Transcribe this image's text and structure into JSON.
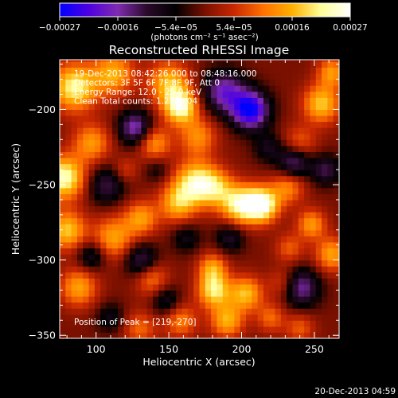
{
  "chart_data": {
    "type": "heatmap",
    "title": "Reconstructed RHESSI Image",
    "xlabel": "Heliocentric X (arcsec)",
    "ylabel": "Heliocentric Y (arcsec)",
    "xlim": [
      75,
      267
    ],
    "ylim": [
      -352,
      -167
    ],
    "x_ticks": [
      100,
      150,
      200,
      250
    ],
    "x_tick_labels": [
      "100",
      "150",
      "200",
      "250"
    ],
    "y_ticks": [
      -200,
      -250,
      -300,
      -350
    ],
    "y_tick_labels": [
      "−200",
      "−250",
      "−300",
      "−350"
    ],
    "colorbar": {
      "range": [
        -0.00027,
        0.00027
      ],
      "tick_labels": [
        "−0.00027",
        "−0.00016",
        "−5.4e−05",
        "5.4e−05",
        "0.00016",
        "0.00027"
      ],
      "unit_label": "(photons cm⁻² s⁻¹ asec⁻²)",
      "colors": [
        "#0000ff",
        "#4f00e0",
        "#7f2bb0",
        "#2a0a2a",
        "#000000",
        "#7a1000",
        "#c82800",
        "#ff7000",
        "#ffb000",
        "#ffff9a",
        "#ffffff"
      ]
    },
    "annotations": [
      "19-Dec-2013 08:42:26.000 to 08:48:16.000",
      "Detectors: 3F 5F 6F 7F 8F 9F, Att 0",
      "Energy Range: 12.0 - 25.0 keV",
      "Clean     Total counts: 1.27E+04"
    ],
    "peak_label": "Position of Peak = [219,-270]",
    "peak": [
      219,
      -270
    ],
    "blobs": [
      {
        "x": 85,
        "y": -185,
        "a": 0.00022,
        "s": 11
      },
      {
        "x": 112,
        "y": -176,
        "a": 0.00016,
        "s": 10
      },
      {
        "x": 97,
        "y": -222,
        "a": 0.00014,
        "s": 9
      },
      {
        "x": 78,
        "y": -245,
        "a": 0.00024,
        "s": 10
      },
      {
        "x": 80,
        "y": -280,
        "a": 0.00018,
        "s": 9
      },
      {
        "x": 112,
        "y": -285,
        "a": 0.00015,
        "s": 10
      },
      {
        "x": 131,
        "y": -272,
        "a": 0.00014,
        "s": 8
      },
      {
        "x": 88,
        "y": -318,
        "a": 0.00015,
        "s": 9
      },
      {
        "x": 138,
        "y": -312,
        "a": 0.00012,
        "s": 8
      },
      {
        "x": 150,
        "y": -182,
        "a": 0.00017,
        "s": 10
      },
      {
        "x": 158,
        "y": -198,
        "a": 0.00024,
        "s": 8
      },
      {
        "x": 140,
        "y": -222,
        "a": 0.00014,
        "s": 8
      },
      {
        "x": 170,
        "y": -218,
        "a": 0.00013,
        "s": 9
      },
      {
        "x": 168,
        "y": -248,
        "a": 0.0002,
        "s": 10
      },
      {
        "x": 156,
        "y": -262,
        "a": 0.00016,
        "s": 9
      },
      {
        "x": 182,
        "y": -252,
        "a": 0.00015,
        "s": 9
      },
      {
        "x": 199,
        "y": -263,
        "a": 0.00022,
        "s": 9
      },
      {
        "x": 214,
        "y": -263,
        "a": 0.00027,
        "s": 8
      },
      {
        "x": 232,
        "y": -251,
        "a": 0.00013,
        "s": 8
      },
      {
        "x": 248,
        "y": -276,
        "a": 0.00014,
        "s": 7
      },
      {
        "x": 262,
        "y": -296,
        "a": 0.00015,
        "s": 8
      },
      {
        "x": 233,
        "y": -292,
        "a": 9e-05,
        "s": 7
      },
      {
        "x": 255,
        "y": -196,
        "a": 0.00018,
        "s": 9
      },
      {
        "x": 262,
        "y": -175,
        "a": 0.00014,
        "s": 7
      },
      {
        "x": 240,
        "y": -222,
        "a": 0.0001,
        "s": 8
      },
      {
        "x": 181,
        "y": -320,
        "a": 0.0002,
        "s": 8
      },
      {
        "x": 203,
        "y": -322,
        "a": 0.00017,
        "s": 8
      },
      {
        "x": 190,
        "y": -340,
        "a": 0.00016,
        "s": 8
      },
      {
        "x": 180,
        "y": -305,
        "a": 0.00014,
        "s": 7
      },
      {
        "x": 158,
        "y": -340,
        "a": 0.00012,
        "s": 8
      },
      {
        "x": 220,
        "y": -338,
        "a": 0.0001,
        "s": 7
      },
      {
        "x": 130,
        "y": -345,
        "a": 0.0001,
        "s": 8
      },
      {
        "x": 240,
        "y": -345,
        "a": 9e-05,
        "s": 7
      },
      {
        "x": 228,
        "y": -315,
        "a": 8e-05,
        "s": 7
      },
      {
        "x": 120,
        "y": -240,
        "a": 7e-05,
        "s": 6
      },
      {
        "x": 206,
        "y": -200,
        "a": -0.00027,
        "s": 9
      },
      {
        "x": 188,
        "y": -188,
        "a": -0.00018,
        "s": 10
      },
      {
        "x": 127,
        "y": -212,
        "a": -0.00018,
        "s": 8
      },
      {
        "x": 107,
        "y": -250,
        "a": -0.00012,
        "s": 9
      },
      {
        "x": 236,
        "y": -235,
        "a": -0.00016,
        "s": 8
      },
      {
        "x": 258,
        "y": -240,
        "a": -0.00012,
        "s": 7
      },
      {
        "x": 131,
        "y": -300,
        "a": -0.00014,
        "s": 8
      },
      {
        "x": 97,
        "y": -297,
        "a": -0.00011,
        "s": 7
      },
      {
        "x": 241,
        "y": -318,
        "a": -0.00016,
        "s": 9
      },
      {
        "x": 148,
        "y": -327,
        "a": -0.0001,
        "s": 7
      },
      {
        "x": 110,
        "y": -338,
        "a": -8e-05,
        "s": 7
      },
      {
        "x": 192,
        "y": -285,
        "a": -0.0001,
        "s": 7
      },
      {
        "x": 162,
        "y": -285,
        "a": -8e-05,
        "s": 7
      },
      {
        "x": 218,
        "y": -225,
        "a": -8e-05,
        "s": 7
      },
      {
        "x": 142,
        "y": -240,
        "a": -6e-05,
        "s": 6
      }
    ]
  },
  "footer": {
    "timestamp": "20-Dec-2013 04:59"
  }
}
